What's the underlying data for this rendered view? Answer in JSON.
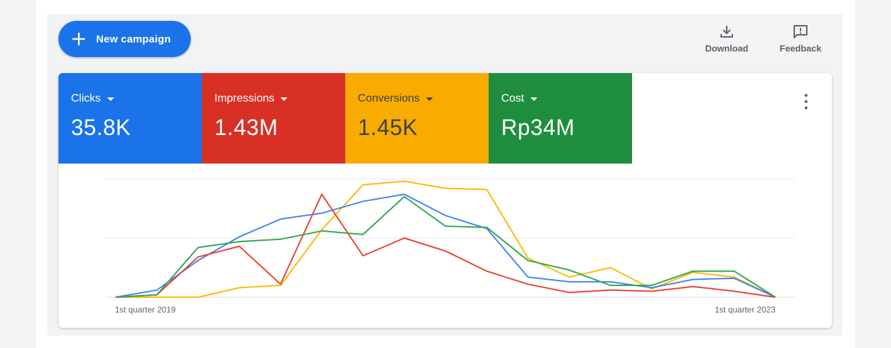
{
  "toolbar": {
    "new_campaign_label": "New campaign",
    "download_label": "Download",
    "feedback_label": "Feedback"
  },
  "metrics": [
    {
      "name": "Clicks",
      "value": "35.8K",
      "color": "#1a73e8"
    },
    {
      "name": "Impressions",
      "value": "1.43M",
      "color": "#d93025"
    },
    {
      "name": "Conversions",
      "value": "1.45K",
      "color": "#f9ab00"
    },
    {
      "name": "Cost",
      "value": "Rp34M",
      "color": "#1e8e3e"
    }
  ],
  "chart_data": {
    "type": "line",
    "x_start_label": "1st quarter 2019",
    "x_end_label": "1st quarter 2023",
    "grid": true,
    "y_scale": [
      0,
      100
    ],
    "series": [
      {
        "name": "Clicks",
        "color": "#4285f4",
        "values": [
          0,
          6,
          31,
          51,
          66,
          71,
          81,
          87,
          69,
          58,
          17,
          13,
          13,
          8,
          15,
          16,
          0
        ]
      },
      {
        "name": "Impressions",
        "color": "#ea4335",
        "values": [
          0,
          2,
          34,
          43,
          11,
          87,
          35,
          50,
          39,
          22,
          11,
          4,
          6,
          5,
          9,
          5,
          0
        ]
      },
      {
        "name": "Conversions",
        "color": "#fbbc04",
        "values": [
          0,
          0,
          0,
          8,
          10,
          57,
          95,
          98,
          92,
          91,
          33,
          17,
          25,
          7,
          21,
          17,
          0
        ]
      },
      {
        "name": "Cost",
        "color": "#34a853",
        "values": [
          0,
          2,
          42,
          47,
          49,
          56,
          53,
          85,
          60,
          59,
          31,
          23,
          10,
          10,
          22,
          22,
          0
        ]
      }
    ]
  }
}
